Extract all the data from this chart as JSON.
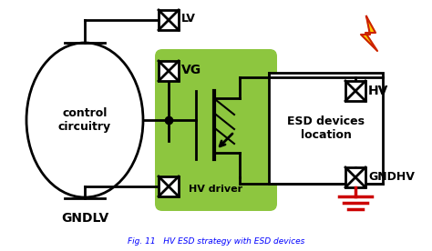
{
  "title": "Fig. 11   HV ESD strategy with ESD devices",
  "bg_color": "#ffffff",
  "green_bg": "#8dc63f",
  "line_color": "#000000",
  "red_color": "#cc0000",
  "orange_color": "#cc2200",
  "yellow_color": "#ffcc00",
  "labels": {
    "LV": "LV",
    "VG": "VG",
    "HV": "HV",
    "GNDHV": "GNDHV",
    "GNDLV": "GNDLV",
    "control": "control\ncircuitry",
    "esd": "ESD devices\nlocation",
    "hvdriver": "HV driver"
  }
}
